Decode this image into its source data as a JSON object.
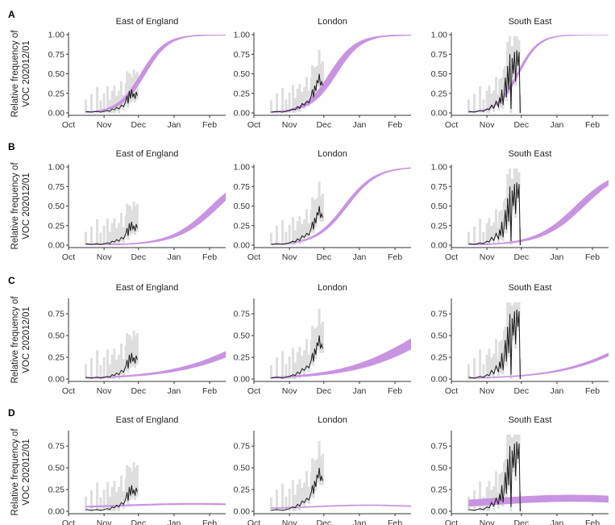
{
  "chart_data": {
    "type": "line",
    "ylabel_line1": "Relative frequency of",
    "ylabel_line2": "VOC 202012/01",
    "x_ticks": [
      "Oct",
      "Nov",
      "Dec",
      "Jan",
      "Feb"
    ],
    "x_tick_days": [
      0,
      31,
      61,
      92,
      123
    ],
    "x_domain_days": [
      0,
      137
    ],
    "regions": [
      "East of England",
      "London",
      "South East"
    ],
    "colors": {
      "model_band": "#c58ee0",
      "observed_line": "#1a1a1a",
      "observed_ci": "#d6d6d6"
    },
    "observed": {
      "East of England": [
        [
          15,
          0.02
        ],
        [
          20,
          0.01
        ],
        [
          25,
          0.02
        ],
        [
          28,
          0.01
        ],
        [
          31,
          0.02
        ],
        [
          34,
          0.03
        ],
        [
          36,
          0.02
        ],
        [
          38,
          0.05
        ],
        [
          40,
          0.04
        ],
        [
          42,
          0.07
        ],
        [
          44,
          0.05
        ],
        [
          46,
          0.1
        ],
        [
          48,
          0.08
        ],
        [
          50,
          0.15
        ],
        [
          51,
          0.22
        ],
        [
          52,
          0.12
        ],
        [
          53,
          0.28
        ],
        [
          54,
          0.18
        ],
        [
          55,
          0.3
        ],
        [
          56,
          0.2
        ],
        [
          57,
          0.25
        ],
        [
          58,
          0.18
        ],
        [
          59,
          0.27
        ],
        [
          60,
          0.22
        ]
      ],
      "London": [
        [
          15,
          0.01
        ],
        [
          20,
          0.02
        ],
        [
          25,
          0.01
        ],
        [
          28,
          0.02
        ],
        [
          31,
          0.03
        ],
        [
          34,
          0.05
        ],
        [
          36,
          0.04
        ],
        [
          38,
          0.08
        ],
        [
          40,
          0.06
        ],
        [
          42,
          0.12
        ],
        [
          44,
          0.1
        ],
        [
          46,
          0.15
        ],
        [
          48,
          0.13
        ],
        [
          50,
          0.22
        ],
        [
          51,
          0.3
        ],
        [
          52,
          0.2
        ],
        [
          53,
          0.35
        ],
        [
          54,
          0.28
        ],
        [
          55,
          0.42
        ],
        [
          56,
          0.38
        ],
        [
          57,
          0.5
        ],
        [
          58,
          0.35
        ],
        [
          59,
          0.4
        ],
        [
          60,
          0.35
        ]
      ],
      "South East": [
        [
          15,
          0.02
        ],
        [
          20,
          0.01
        ],
        [
          25,
          0.03
        ],
        [
          28,
          0.02
        ],
        [
          31,
          0.05
        ],
        [
          33,
          0.04
        ],
        [
          35,
          0.1
        ],
        [
          37,
          0.06
        ],
        [
          39,
          0.15
        ],
        [
          41,
          0.08
        ],
        [
          42,
          0.2
        ],
        [
          43,
          0.12
        ],
        [
          44,
          0.3
        ],
        [
          45,
          0.1
        ],
        [
          46,
          0.25
        ],
        [
          47,
          0.45
        ],
        [
          48,
          0.2
        ],
        [
          49,
          0.6
        ],
        [
          50,
          0.3
        ],
        [
          51,
          0.75
        ],
        [
          52,
          0.05
        ],
        [
          53,
          0.7
        ],
        [
          54,
          0.5
        ],
        [
          55,
          0.78
        ],
        [
          56,
          0.4
        ],
        [
          57,
          0.8
        ],
        [
          58,
          0.6
        ],
        [
          59,
          0.78
        ],
        [
          60,
          0.0
        ]
      ]
    },
    "panels": [
      {
        "label": "A",
        "yticks": [
          "0.00",
          "0.25",
          "0.50",
          "0.75",
          "1.00"
        ],
        "ylim": [
          0,
          1.0
        ],
        "fits": {
          "East of England": {
            "mid": 65,
            "k": 0.095,
            "width": 0.05,
            "cap": 1.0
          },
          "London": {
            "mid": 69,
            "k": 0.088,
            "width": 0.07,
            "cap": 1.0
          },
          "South East": {
            "mid": 58,
            "k": 0.11,
            "width": 0.03,
            "cap": 1.0
          }
        }
      },
      {
        "label": "B",
        "yticks": [
          "0.00",
          "0.25",
          "0.50",
          "0.75",
          "1.00"
        ],
        "ylim": [
          0,
          1.0
        ],
        "fits": {
          "East of England": {
            "mid": 128,
            "k": 0.055,
            "width": 0.05,
            "cap": 1.0
          },
          "London": {
            "mid": 80,
            "k": 0.075,
            "width": 0.03,
            "cap": 1.0
          },
          "South East": {
            "mid": 112,
            "k": 0.055,
            "width": 0.05,
            "cap": 1.0
          }
        }
      },
      {
        "label": "C",
        "yticks": [
          "0.00",
          "0.25",
          "0.50",
          "0.75"
        ],
        "ylim": [
          0,
          0.9
        ],
        "fits": {
          "East of England": {
            "mid": 170,
            "k": 0.028,
            "width": 0.04,
            "cap": 1.0
          },
          "London": {
            "mid": 150,
            "k": 0.03,
            "width": 0.06,
            "cap": 1.0
          },
          "South East": {
            "mid": 168,
            "k": 0.03,
            "width": 0.02,
            "cap": 1.0
          }
        }
      },
      {
        "label": "D",
        "yticks": [
          "0.00",
          "0.25",
          "0.50",
          "0.75"
        ],
        "ylim": [
          0,
          0.9
        ],
        "bumps": {
          "East of England": {
            "base": 0.04,
            "peak": 0.085,
            "center": 110,
            "sigma": 60,
            "width": 0.01
          },
          "London": {
            "base": 0.03,
            "peak": 0.07,
            "center": 100,
            "sigma": 45,
            "width": 0.008
          },
          "South East": {
            "base": 0.05,
            "peak": 0.15,
            "center": 105,
            "sigma": 70,
            "width": 0.04
          }
        }
      }
    ]
  }
}
